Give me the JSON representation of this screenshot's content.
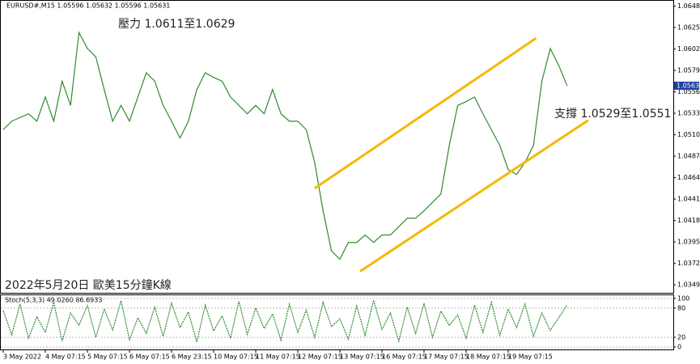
{
  "chart_data": [
    {
      "type": "line",
      "header": "EURUSD#,M15  1.05596 1.05632 1.05596 1.05631",
      "annotations": [
        "壓力 1.0611至1.0629",
        "支撐 1.0529至1.0551",
        "2022年5月20日 歐美15分鐘K線"
      ],
      "xlim": [
        0,
        80
      ],
      "xticks": [
        {
          "value": 0,
          "label": "3 May 2022"
        },
        {
          "value": 5,
          "label": "4 May 07:15"
        },
        {
          "value": 10,
          "label": "5 May 07:15"
        },
        {
          "value": 15,
          "label": "6 May 07:15"
        },
        {
          "value": 20,
          "label": "6 May 23:15"
        },
        {
          "value": 25,
          "label": "10 May 07:15"
        },
        {
          "value": 30,
          "label": "11 May 07:15"
        },
        {
          "value": 35,
          "label": "12 May 07:15"
        },
        {
          "value": 40,
          "label": "13 May 07:15"
        },
        {
          "value": 45,
          "label": "16 May 07:15"
        },
        {
          "value": 50,
          "label": "17 May 07:15"
        },
        {
          "value": 55,
          "label": "18 May 07:15"
        },
        {
          "value": 60,
          "label": "19 May 07:15"
        }
      ],
      "ylim": [
        1.0341,
        1.0655
      ],
      "yticks": [
        1.06485,
        1.06255,
        1.06025,
        1.05795,
        1.05565,
        1.05335,
        1.05105,
        1.04875,
        1.04645,
        1.04415,
        1.04185,
        1.03955,
        1.03725,
        1.03495
      ],
      "last_price": 1.05631,
      "series": [
        {
          "color": "#2e8b2e",
          "values": [
            1.0516,
            1.0525,
            1.0529,
            1.0533,
            1.0525,
            1.0551,
            1.0525,
            1.0568,
            1.0542,
            1.062,
            1.0603,
            1.0594,
            1.0559,
            1.0525,
            1.0542,
            1.0525,
            1.0551,
            1.0577,
            1.0568,
            1.0542,
            1.0525,
            1.0507,
            1.0525,
            1.0559,
            1.0577,
            1.0572,
            1.0568,
            1.0551,
            1.0542,
            1.0533,
            1.0542,
            1.0533,
            1.0559,
            1.0533,
            1.0525,
            1.0525,
            1.0516,
            1.0481,
            1.0429,
            1.0386,
            1.0377,
            1.0395,
            1.0395,
            1.0403,
            1.0395,
            1.0403,
            1.0403,
            1.0412,
            1.0421,
            1.0421,
            1.0429,
            1.0438,
            1.0447,
            1.0499,
            1.0542,
            1.0546,
            1.0551,
            1.0533,
            1.0516,
            1.0499,
            1.0473,
            1.0468,
            1.0481,
            1.0499,
            1.0568,
            1.0603,
            1.0585,
            1.0563
          ]
        }
      ],
      "trendlines": [
        {
          "color": "#f5b800",
          "x": [
            37,
            63.3
          ],
          "y": [
            1.0453,
            1.0614
          ]
        },
        {
          "color": "#f5b800",
          "x": [
            42.4,
            69.5
          ],
          "y": [
            1.0364,
            1.0526
          ]
        }
      ]
    },
    {
      "type": "line",
      "header": "Stoch(5,3,3) 49.0260 86.6933",
      "xlim": [
        0,
        80
      ],
      "ylim": [
        -5,
        108
      ],
      "yticks": [
        100,
        80,
        20,
        0
      ],
      "series": [
        {
          "color": "#2e8b2e",
          "values": [
            75,
            25,
            88,
            18,
            62,
            30,
            92,
            12,
            70,
            45,
            85,
            20,
            78,
            35,
            95,
            15,
            60,
            28,
            82,
            22,
            90,
            40,
            72,
            10,
            86,
            33,
            64,
            18,
            94,
            26,
            80,
            38,
            68,
            14,
            88,
            30,
            76,
            20,
            92,
            42,
            58,
            16,
            84,
            24,
            96,
            36,
            70,
            12,
            82,
            28,
            90,
            20,
            74,
            44,
            66,
            18,
            86,
            30,
            92,
            24,
            78,
            40,
            88,
            22,
            70,
            34,
            60,
            86.6933
          ]
        }
      ]
    }
  ]
}
